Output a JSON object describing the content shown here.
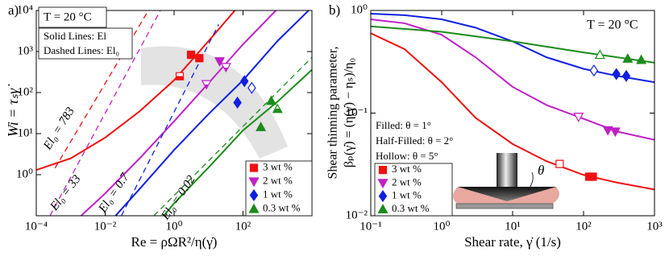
{
  "chart_data": [
    {
      "type": "loglog",
      "panel_label": "a)",
      "xlabel": "Re = ρΩR²/η(γ̇)",
      "ylabel": "Wi = τₛγ̇",
      "annotations": [
        "T = 20 °C",
        "Solid Lines: El",
        "Dashed Lines: El₀"
      ],
      "xlim": [
        0.0001,
        10000
      ],
      "ylim": [
        0.1,
        10000
      ],
      "xticks": [
        {
          "value": 0.0001,
          "label": "10⁻⁴"
        },
        {
          "value": 0.01,
          "label": "10⁻²"
        },
        {
          "value": 1,
          "label": "10⁰"
        },
        {
          "value": 100,
          "label": "10²"
        }
      ],
      "yticks": [
        {
          "value": 1,
          "label": "10⁰"
        },
        {
          "value": 10,
          "label": "10¹"
        },
        {
          "value": 100,
          "label": "10²"
        },
        {
          "value": 1000,
          "label": "10³"
        },
        {
          "value": 10000,
          "label": "10⁴"
        }
      ],
      "curves": [
        {
          "color": "#f01010",
          "style": "solid",
          "x": [
            0.0001,
            0.001,
            0.01,
            0.1,
            1,
            10,
            58
          ],
          "y": [
            1.3,
            2.5,
            8,
            35,
            200,
            1800,
            10000
          ]
        },
        {
          "color": "#f01010",
          "style": "dashed",
          "label": "El₀ = 783",
          "x": [
            0.00035,
            0.18
          ],
          "y": [
            1.45,
            10000
          ]
        },
        {
          "color": "#c020c8",
          "style": "solid",
          "x": [
            0.002,
            0.01,
            0.1,
            1,
            10,
            100,
            900
          ],
          "y": [
            0.1,
            0.35,
            2.5,
            20,
            170,
            1500,
            10000
          ]
        },
        {
          "color": "#c020c8",
          "style": "dashed",
          "label": "El₀ = 33",
          "x": [
            0.00025,
            0.4
          ],
          "y": [
            0.1,
            10000
          ]
        },
        {
          "color": "#1020e0",
          "style": "solid",
          "x": [
            0.02,
            0.1,
            1,
            10,
            100,
            1000,
            8000
          ],
          "y": [
            0.1,
            0.45,
            4,
            30,
            200,
            1800,
            10000
          ]
        },
        {
          "color": "#1020e0",
          "style": "dashed",
          "label": "El₀ = 0.7",
          "x": [
            0.0295,
            19.6
          ],
          "y": [
            0.1,
            4570
          ]
        },
        {
          "color": "#1a8c1a",
          "style": "solid",
          "x": [
            0.5,
            1,
            10,
            100,
            1000,
            10000
          ],
          "y": [
            0.1,
            0.2,
            1.5,
            12,
            60,
            360
          ]
        },
        {
          "color": "#1a8c1a",
          "style": "dashed",
          "label": "El₀ = 0.02",
          "x": [
            0.26,
            10000
          ],
          "y": [
            0.1,
            724
          ]
        }
      ],
      "series": [
        {
          "name": "3 wt %",
          "color": "#f01010",
          "marker": "square",
          "x": [
            1.46,
            3.1,
            5.4
          ],
          "y": [
            250,
            830,
            690
          ],
          "fills": [
            "half",
            "filled",
            "filled"
          ]
        },
        {
          "name": "2 wt %",
          "color": "#c020c8",
          "marker": "triangle-down",
          "x": [
            8.7,
            21,
            32
          ],
          "y": [
            160,
            575,
            417
          ],
          "fills": [
            "half",
            "filled",
            "half"
          ]
        },
        {
          "name": "1 wt %",
          "color": "#1020e0",
          "marker": "diamond",
          "x": [
            69,
            110,
            180
          ],
          "y": [
            57,
            190,
            130
          ],
          "fills": [
            "filled",
            "filled",
            "open"
          ]
        },
        {
          "name": "0.3 wt %",
          "color": "#1a8c1a",
          "marker": "triangle-up",
          "x": [
            330,
            660,
            1000
          ],
          "y": [
            14.5,
            63,
            40
          ],
          "fills": [
            "filled",
            "filled",
            "half"
          ]
        }
      ]
    },
    {
      "type": "loglog",
      "panel_label": "b)",
      "xlabel": "Shear rate, γ̇ (1/s)",
      "ylabel": [
        "Shear thinning parameter,",
        "βₚ(γ̇) = (η(γ̇) − ηₛ)/η₀"
      ],
      "annotations": [
        "T = 20 °C",
        "Filled: θ = 1°",
        "Half-Filled: θ = 2°",
        "Hollow: θ = 5°"
      ],
      "inset_label": "θ",
      "xlim": [
        0.1,
        1000
      ],
      "ylim": [
        0.01,
        1
      ],
      "xticks": [
        {
          "value": 0.1,
          "label": "10⁻¹"
        },
        {
          "value": 1,
          "label": "10⁰"
        },
        {
          "value": 10,
          "label": "10¹"
        },
        {
          "value": 100,
          "label": "10²"
        },
        {
          "value": 1000,
          "label": "10³"
        }
      ],
      "yticks": [
        {
          "value": 0.01,
          "label": "10⁻²"
        },
        {
          "value": 0.1,
          "label": "10⁻¹"
        },
        {
          "value": 1,
          "label": "10⁰"
        }
      ],
      "curves": [
        {
          "color": "#f01010",
          "style": "solid",
          "x": [
            0.1,
            0.3,
            1,
            3,
            10,
            30,
            100,
            300,
            1000
          ],
          "y": [
            0.6,
            0.42,
            0.2,
            0.09,
            0.05,
            0.034,
            0.025,
            0.021,
            0.018
          ]
        },
        {
          "color": "#c020c8",
          "style": "solid",
          "x": [
            0.1,
            0.3,
            1,
            3,
            10,
            30,
            100,
            300,
            1000
          ],
          "y": [
            0.82,
            0.75,
            0.58,
            0.35,
            0.18,
            0.12,
            0.088,
            0.066,
            0.055
          ]
        },
        {
          "color": "#1020e0",
          "style": "solid",
          "x": [
            0.1,
            0.3,
            1,
            3,
            10,
            30,
            100,
            300,
            1000
          ],
          "y": [
            0.93,
            0.9,
            0.82,
            0.68,
            0.5,
            0.35,
            0.27,
            0.23,
            0.2
          ]
        },
        {
          "color": "#1a8c1a",
          "style": "solid",
          "x": [
            0.1,
            1,
            10,
            100,
            1000
          ],
          "y": [
            0.7,
            0.62,
            0.5,
            0.39,
            0.31
          ]
        }
      ],
      "series": [
        {
          "name": "3 wt %",
          "color": "#f01010",
          "marker": "square",
          "x": [
            46,
            120,
            135
          ],
          "y": [
            0.032,
            0.024,
            0.024
          ],
          "fills": [
            "open",
            "filled",
            "filled"
          ]
        },
        {
          "name": "2 wt %",
          "color": "#c020c8",
          "marker": "triangle-down",
          "x": [
            85,
            220,
            280
          ],
          "y": [
            0.092,
            0.068,
            0.066
          ],
          "fills": [
            "open",
            "filled",
            "filled"
          ]
        },
        {
          "name": "1 wt %",
          "color": "#1020e0",
          "marker": "diamond",
          "x": [
            140,
            290,
            400
          ],
          "y": [
            0.26,
            0.24,
            0.23
          ],
          "fills": [
            "open",
            "filled",
            "filled"
          ]
        },
        {
          "name": "0.3 wt %",
          "color": "#1a8c1a",
          "marker": "triangle-up",
          "x": [
            170,
            420,
            650
          ],
          "y": [
            0.37,
            0.34,
            0.33
          ],
          "fills": [
            "open",
            "filled",
            "filled"
          ]
        }
      ]
    }
  ]
}
